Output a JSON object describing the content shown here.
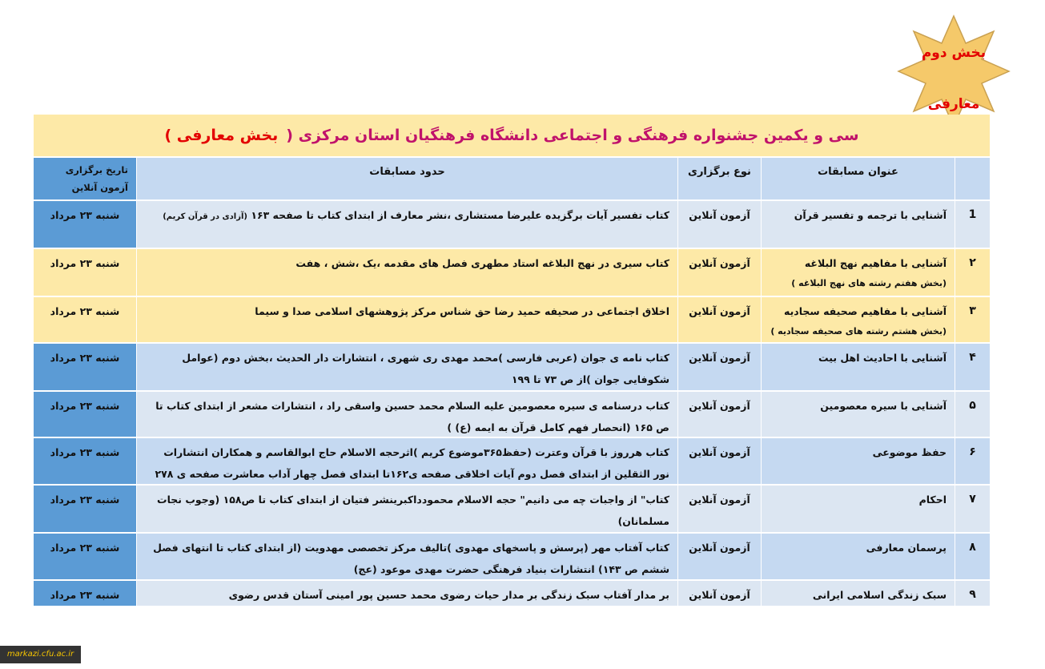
{
  "badge": {
    "line1": "بخش دوم",
    "line2": "معارفی",
    "color": "#f5c96a"
  },
  "title": {
    "main": "سی و یکمین جشنواره فرهنگی و اجتماعی دانشگاه فرهنگیان استان مرکزی (",
    "red": "بخش معارفی )"
  },
  "headers": {
    "num": "",
    "name": "عنوان مسابقات",
    "type": "نوع برگزاری",
    "scope": "حدود مسابقات",
    "date": "تاریخ برگزاری آزمون آنلاین"
  },
  "rows": [
    {
      "num": "1",
      "name": "آشنایی با ترجمه و تفسیر قرآن",
      "sub": "",
      "type": "آزمون آنلاین",
      "scope": "کتاب تفسیر آیات برگزیده علیرضا مستشاری ،نشر معارف از ابتدای کتاب تا صفحه ۱۶۳",
      "scope_small": "(آزادی در قرآن کریم)",
      "date": "شنبه ۲۳ مرداد"
    },
    {
      "num": "۲",
      "name": "آشنایی با مفاهیم نهج البلاغه",
      "sub": "(بخش هفتم رشته های نهج البلاغه )",
      "type": "آزمون آنلاین",
      "scope": "کتاب سیری در نهج البلاغه استاد مطهری فصل های مقدمه ،یک ،شش ، هفت",
      "scope_small": "",
      "date": "شنبه ۲۳ مرداد"
    },
    {
      "num": "۳",
      "name": "آشنایی با مفاهیم صحیفه سجادیه",
      "sub": "(بخش هشتم رشته های صحیفه سجادیه )",
      "type": "آزمون آنلاین",
      "scope": "اخلاق اجتماعی در صحیفه حمید رضا حق شناس مرکز پژوهشهای اسلامی صدا و سیما",
      "scope_small": "",
      "date": "شنبه ۲۳ مرداد"
    },
    {
      "num": "۴",
      "name": "آشنایی با احادیث اهل بیت",
      "sub": "",
      "type": "آزمون آنلاین",
      "scope": "کتاب نامه ی جوان (عربی فارسی )محمد مهدی ری شهری ، انتشارات دار الحدیث ،بخش دوم (عوامل شکوفایی جوان )از ص ۷۳ تا ۱۹۹",
      "scope_small": "",
      "date": "شنبه ۲۳ مرداد"
    },
    {
      "num": "۵",
      "name": "آشنایی با سیره معصومین",
      "sub": "",
      "type": "آزمون آنلاین",
      "scope": "کتاب درسنامه ی سیره معصومین علیه السلام محمد حسین واسقی راد ، انتشارات مشعر از ابتدای کتاب تا ص ۱۶۵ (انحصار فهم کامل قرآن به ایمه (ع) )",
      "scope_small": "",
      "date": "شنبه ۲۳ مرداد"
    },
    {
      "num": "۶",
      "name": "حفظ موضوعی",
      "sub": "",
      "type": "آزمون آنلاین",
      "scope": "کتاب هرروز با قرآن وعترت (حفظ۳۶۵موضوع کریم )اثرحجه الاسلام حاج ابوالقاسم و همکاران انتشارات نور الثقلین از ابتدای فصل دوم آیات اخلاقی صفحه ی۱۶۲تا ابتدای فصل چهار آداب معاشرت صفحه ی ۲۷۸",
      "scope_small": "",
      "date": "شنبه ۲۳ مرداد"
    },
    {
      "num": "۷",
      "name": "احکام",
      "sub": "",
      "type": "آزمون آنلاین",
      "scope": "کتاب\" از واجبات چه می دانیم\" حجه الاسلام محمودداکبرینشر فتیان از ابتدای کتاب تا ص۱۵۸ (وجوب نجات مسلمانان)",
      "scope_small": "",
      "date": "شنبه ۲۳ مرداد"
    },
    {
      "num": "۸",
      "name": "پرسمان معارفی",
      "sub": "",
      "type": "آزمون آنلاین",
      "scope": "کتاب آفتاب مهر (پرسش و پاسخهای مهدوی )تالیف مرکز تخصصی مهدویت (از ابتدای کتاب تا انتهای فصل ششم ص ۱۴۳) انتشارات بنیاد فرهنگی حضرت مهدی موعود (عج)",
      "scope_small": "",
      "date": "شنبه ۲۳ مرداد"
    },
    {
      "num": "۹",
      "name": "سبک زندگی اسلامی ایرانی",
      "sub": "",
      "type": "آزمون آنلاین",
      "scope": "بر مدار آفتاب سبک زندگی بر مدار حیات رضوی محمد حسین پور امینی آستان قدس رضوی",
      "scope_small": "",
      "date": "شنبه ۲۳ مرداد"
    }
  ],
  "watermark": "markazi.cfu.ac.ir",
  "colors": {
    "yellow": "#fde9a7",
    "blue_dark": "#5b9bd5",
    "blue_mid": "#c5d9f1",
    "blue_light": "#dce6f2"
  }
}
